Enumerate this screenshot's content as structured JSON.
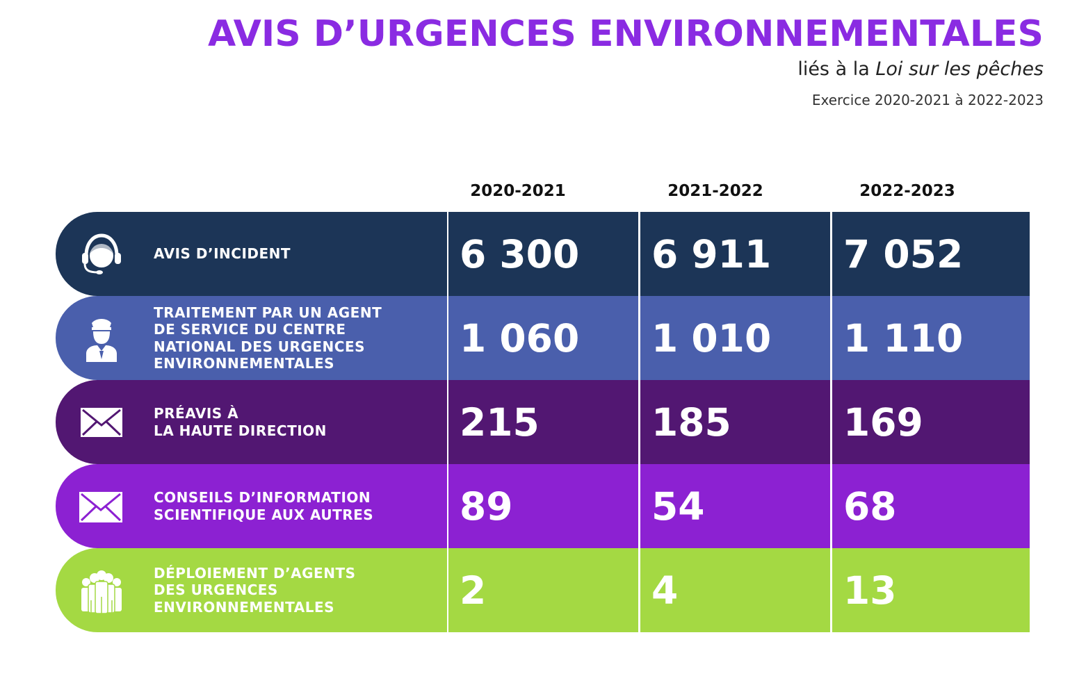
{
  "header": {
    "title": "AVIS D’URGENCES ENVIRONNEMENTALES",
    "subtitle_prefix": "liés à la ",
    "subtitle_italic": "Loi sur les pêches",
    "period": "Exercice 2020-2021 à 2022-2023"
  },
  "columns": [
    "2020-2021",
    "2021-2022",
    "2022-2023"
  ],
  "rows": [
    {
      "label": "AVIS D’INCIDENT",
      "icon": "headset-operator-icon",
      "color": "#1c3557",
      "values": [
        "6 300",
        "6 911",
        "7 052"
      ]
    },
    {
      "label": "TRAITEMENT PAR UN AGENT\nDE SERVICE DU CENTRE\nNATIONAL DES URGENCES\nENVIRONNEMENTALES",
      "icon": "police-officer-icon",
      "color": "#4a5fac",
      "values": [
        "1 060",
        "1 010",
        "1 110"
      ]
    },
    {
      "label": "PRÉAVIS À\nLA HAUTE DIRECTION",
      "icon": "envelope-icon",
      "color": "#521772",
      "values": [
        "215",
        "185",
        "169"
      ]
    },
    {
      "label": "CONSEILS D’INFORMATION\nSCIENTIFIQUE AUX AUTRES",
      "icon": "envelope-icon",
      "color": "#8c21d2",
      "values": [
        "89",
        "54",
        "68"
      ]
    },
    {
      "label": "DÉPLOIEMENT D’AGENTS\nDES URGENCES\nENVIRONNEMENTALES",
      "icon": "group-of-people-icon",
      "color": "#a4d943",
      "values": [
        "2",
        "4",
        "13"
      ]
    }
  ]
}
